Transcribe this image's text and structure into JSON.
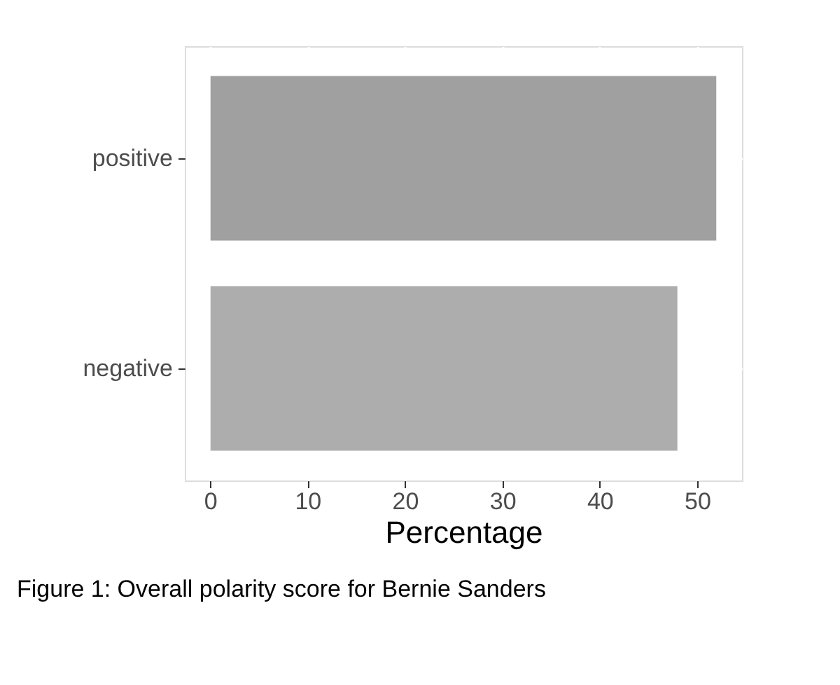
{
  "chart_data": {
    "type": "bar",
    "orientation": "horizontal",
    "categories": [
      "positive",
      "negative"
    ],
    "values": [
      52,
      48
    ],
    "colors": [
      "#a0a0a0",
      "#adadad"
    ],
    "xlabel": "Percentage",
    "xlim": [
      -2.6,
      54.6
    ],
    "xticks": [
      0,
      10,
      20,
      30,
      40,
      50
    ],
    "grid": true,
    "annotations": [
      "Figure 1: Overall polarity score for Bernie Sanders"
    ]
  }
}
